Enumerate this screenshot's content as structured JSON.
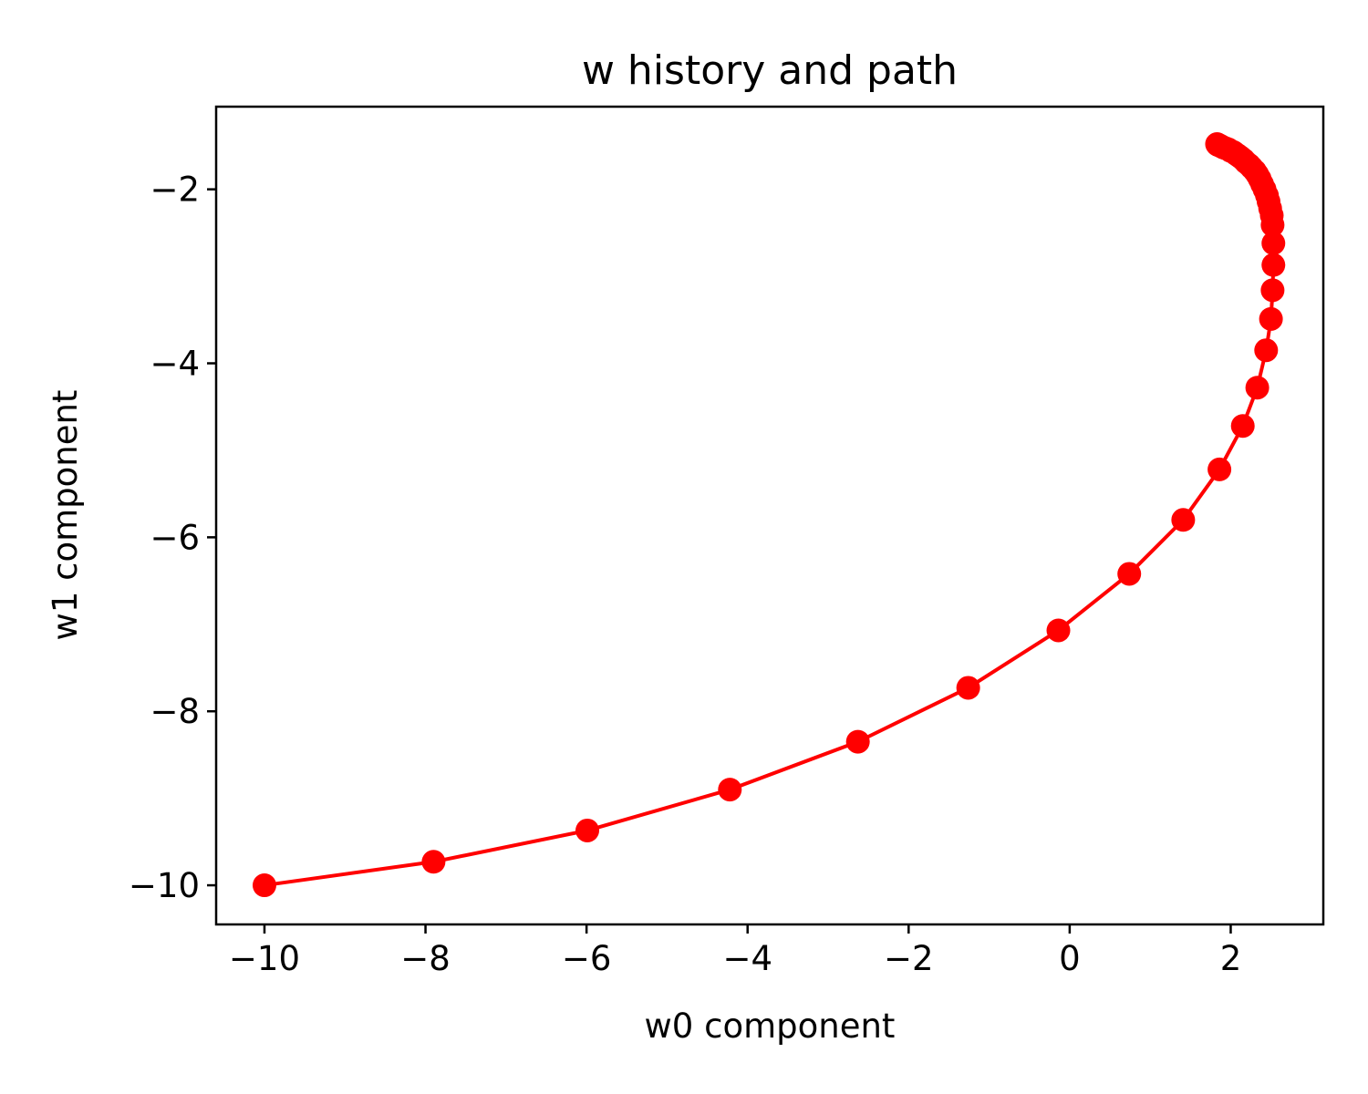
{
  "chart_data": {
    "type": "line",
    "title": "w history and path",
    "xlabel": "w0 component",
    "ylabel": "w1 component",
    "xlim": [
      -10.6,
      3.15
    ],
    "ylim": [
      -10.45,
      -1.05
    ],
    "xticks": [
      -10,
      -8,
      -6,
      -4,
      -2,
      0,
      2
    ],
    "yticks": [
      -10,
      -8,
      -6,
      -4,
      -2
    ],
    "xtick_labels": [
      "−10",
      "−8",
      "−6",
      "−4",
      "−2",
      "0",
      "2"
    ],
    "ytick_labels": [
      "−10",
      "−8",
      "−6",
      "−4",
      "−2"
    ],
    "grid": false,
    "color": "#ff0000",
    "markers": true,
    "series": [
      {
        "x": [
          -10.0,
          -7.9,
          -5.99,
          -4.22,
          -2.63,
          -1.26,
          -0.14,
          0.74,
          1.41,
          1.86,
          2.15,
          2.33,
          2.44,
          2.5,
          2.52,
          2.53,
          2.53,
          2.52,
          2.51,
          2.49,
          2.47,
          2.45,
          2.42,
          2.39,
          2.36,
          2.33,
          2.3,
          2.26,
          2.23,
          2.19,
          2.16,
          2.12,
          2.09,
          2.06,
          2.03,
          2.0,
          1.97,
          1.94,
          1.91,
          1.89,
          1.87,
          1.85,
          1.84,
          1.83
        ],
        "y": [
          -10.0,
          -9.73,
          -9.37,
          -8.9,
          -8.35,
          -7.73,
          -7.07,
          -6.42,
          -5.8,
          -5.22,
          -4.72,
          -4.28,
          -3.85,
          -3.49,
          -3.16,
          -2.87,
          -2.62,
          -2.41,
          -2.3,
          -2.22,
          -2.14,
          -2.07,
          -2.0,
          -1.94,
          -1.88,
          -1.83,
          -1.79,
          -1.75,
          -1.72,
          -1.69,
          -1.66,
          -1.63,
          -1.61,
          -1.59,
          -1.57,
          -1.56,
          -1.54,
          -1.53,
          -1.52,
          -1.51,
          -1.5,
          -1.49,
          -1.49,
          -1.48
        ]
      }
    ]
  }
}
